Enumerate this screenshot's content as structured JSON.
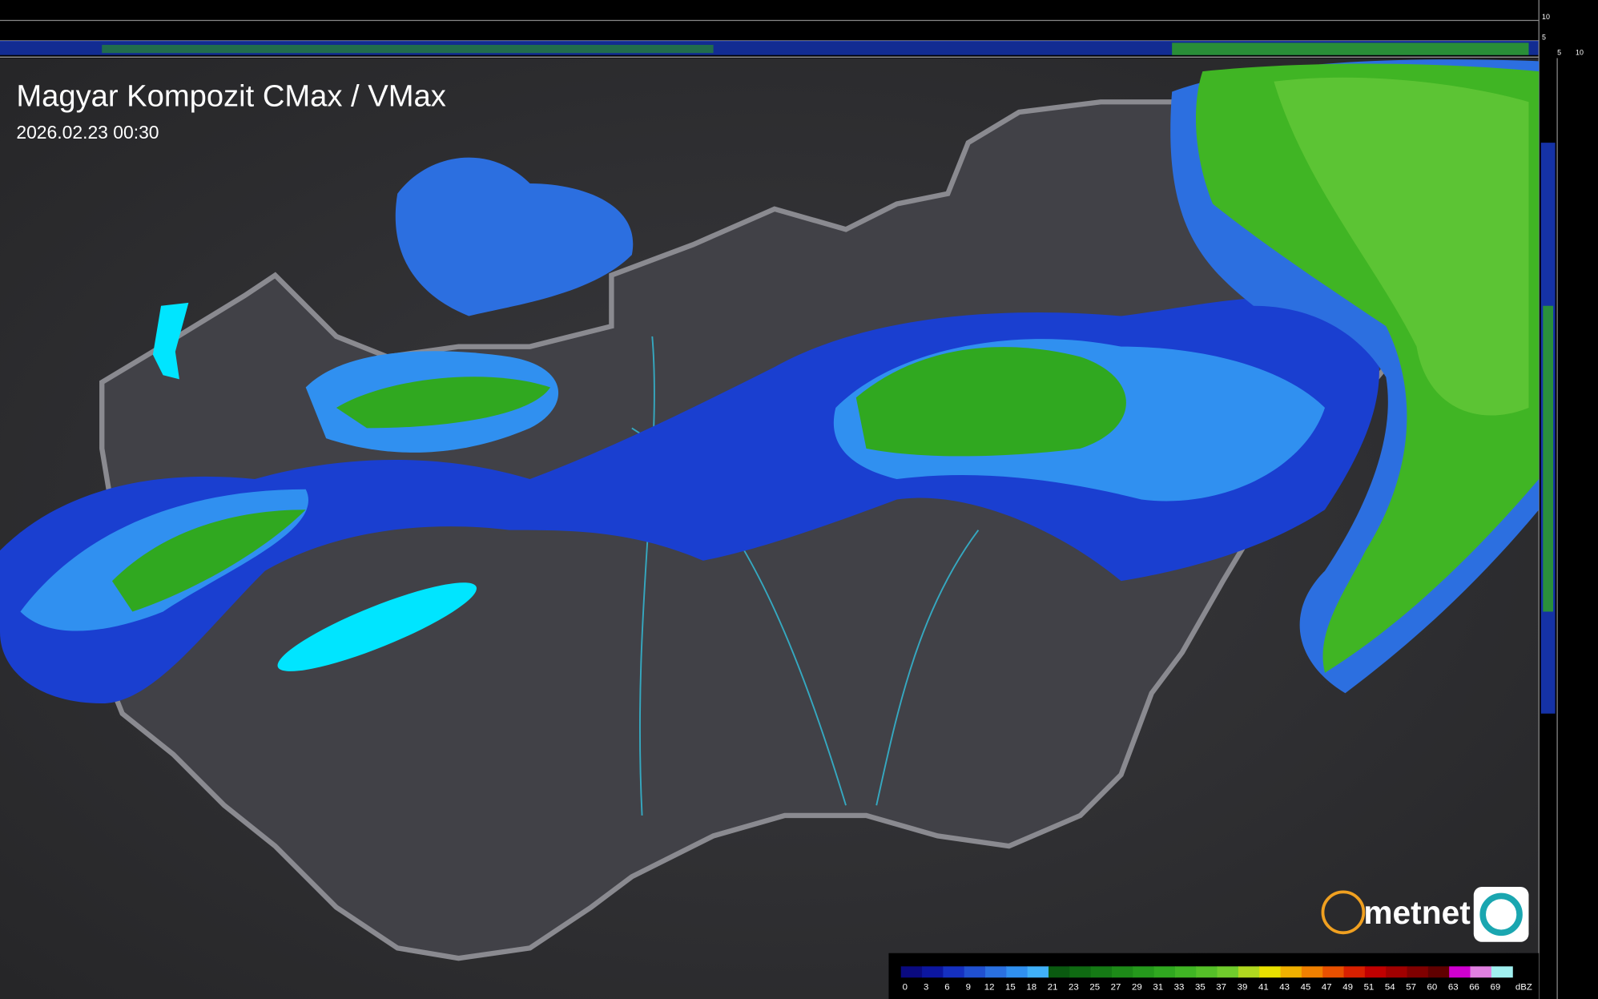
{
  "header": {
    "title": "Magyar Kompozit CMax / VMax",
    "timestamp": "2026.02.23 00:30"
  },
  "brand": {
    "name": "metnet"
  },
  "side_scale": {
    "top_labels": [
      10,
      5
    ],
    "bottom_labels": [
      5,
      10
    ]
  },
  "legend": {
    "unit": "dBZ",
    "labels": [
      0,
      3,
      6,
      9,
      12,
      15,
      18,
      21,
      23,
      25,
      27,
      29,
      31,
      33,
      35,
      37,
      39,
      41,
      43,
      45,
      47,
      49,
      51,
      54,
      57,
      60,
      63,
      66,
      69
    ],
    "colors": [
      "#0a0a80",
      "#0c16a0",
      "#1530c0",
      "#2050d0",
      "#2a70e0",
      "#3090f0",
      "#40b0f8",
      "#0a5a10",
      "#0f6a12",
      "#157a15",
      "#1d8a18",
      "#25991c",
      "#30a820",
      "#40b524",
      "#55c028",
      "#70cc2c",
      "#b0d820",
      "#e8e000",
      "#f0b000",
      "#f08000",
      "#e85000",
      "#d82000",
      "#c00000",
      "#a00000",
      "#800000",
      "#600000",
      "#d000d0",
      "#e080e0",
      "#a0f0f0"
    ]
  }
}
